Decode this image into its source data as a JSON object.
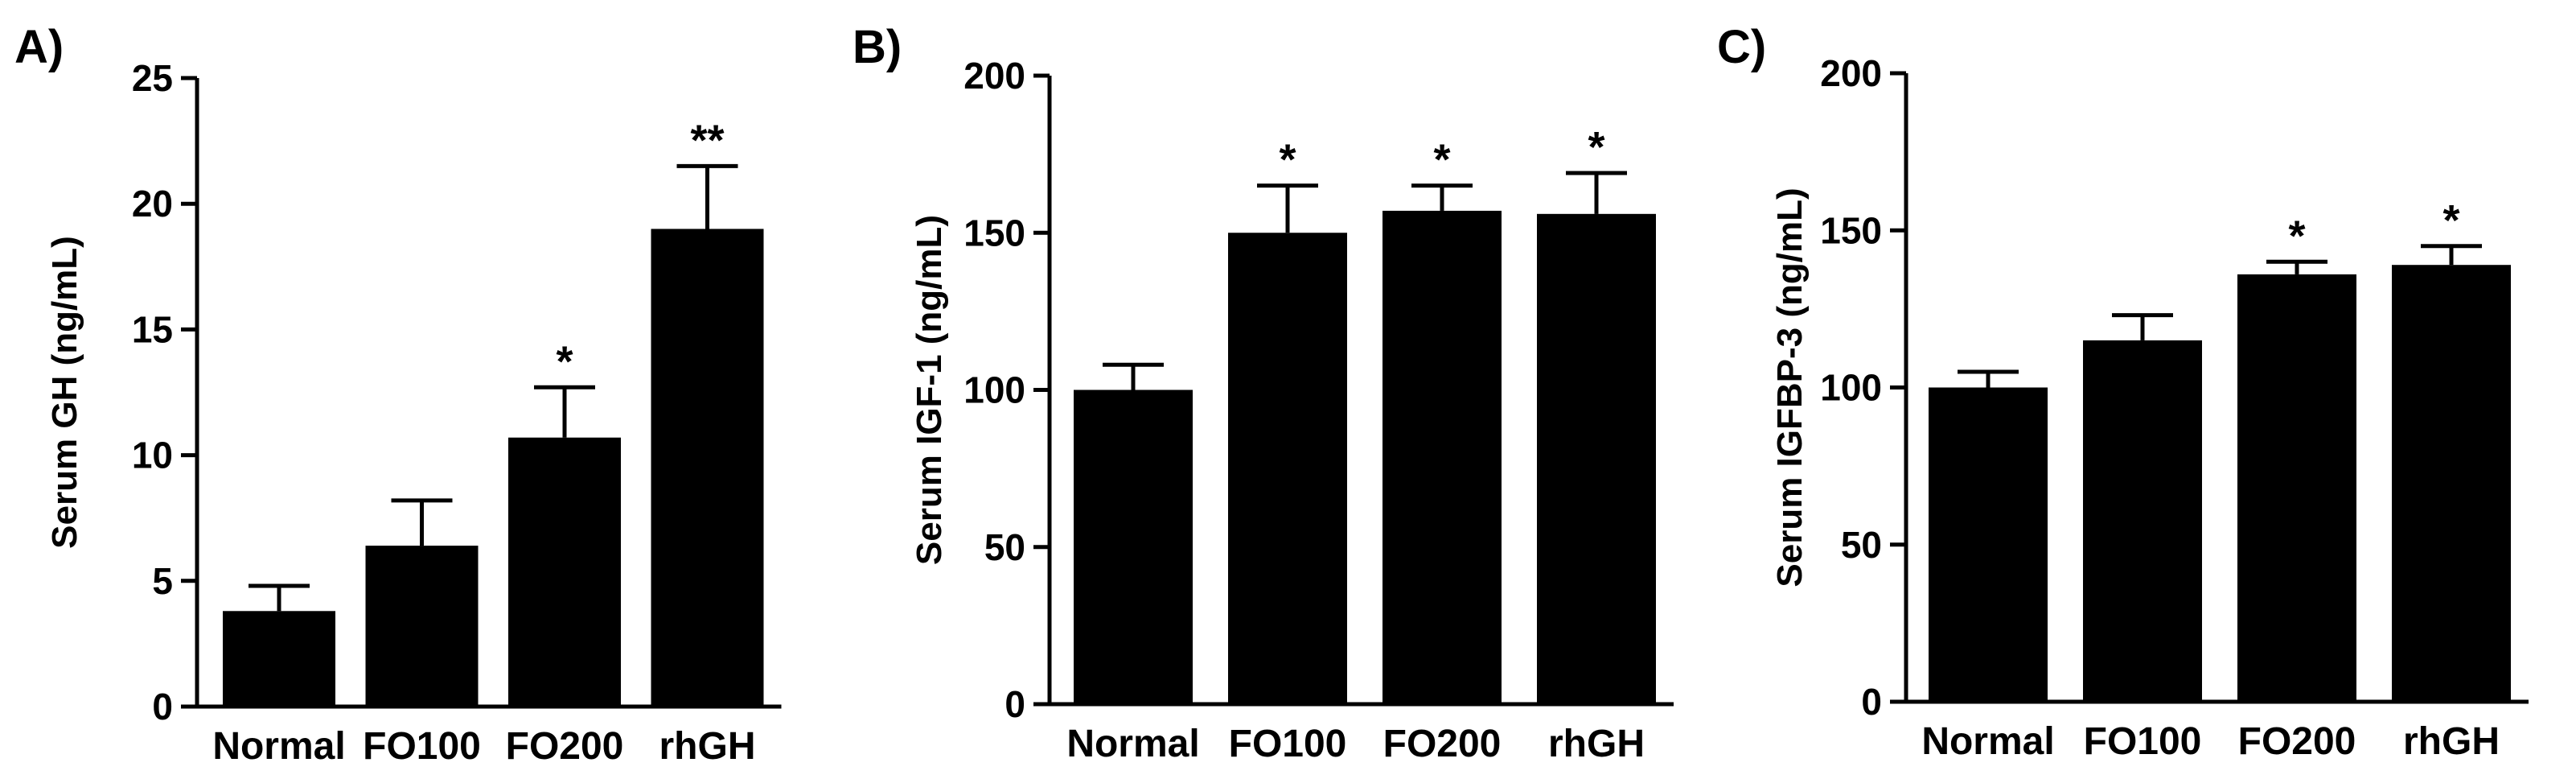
{
  "chart_data": [
    {
      "panel": "A)",
      "type": "bar",
      "ylabel": "Serum GH (ng/mL)",
      "xlabel": "",
      "ylim": [
        0,
        25
      ],
      "yticks": [
        "0",
        "5",
        "10",
        "15",
        "20",
        "25"
      ],
      "categories": [
        "Normal",
        "FO100",
        "FO200",
        "rhGH"
      ],
      "values": [
        3.8,
        6.4,
        10.7,
        19.0
      ],
      "errors": [
        1.0,
        1.8,
        2.0,
        2.5
      ],
      "significance": [
        "",
        "",
        "*",
        "**"
      ],
      "bar_color": "#000000",
      "grid": false
    },
    {
      "panel": "B)",
      "type": "bar",
      "ylabel": "Serum IGF-1 (ng/mL)",
      "xlabel": "",
      "ylim": [
        0,
        200
      ],
      "yticks": [
        "0",
        "50",
        "100",
        "150",
        "200"
      ],
      "categories": [
        "Normal",
        "FO100",
        "FO200",
        "rhGH"
      ],
      "values": [
        100,
        150,
        157,
        156
      ],
      "errors": [
        8,
        15,
        8,
        13
      ],
      "significance": [
        "",
        "*",
        "*",
        "*"
      ],
      "bar_color": "#000000",
      "grid": false
    },
    {
      "panel": "C)",
      "type": "bar",
      "ylabel": "Serum IGFBP-3 (ng/mL)",
      "xlabel": "",
      "ylim": [
        0,
        200
      ],
      "yticks": [
        "0",
        "50",
        "100",
        "150",
        "200"
      ],
      "categories": [
        "Normal",
        "FO100",
        "FO200",
        "rhGH"
      ],
      "values": [
        100,
        115,
        136,
        139
      ],
      "errors": [
        5,
        8,
        4,
        6
      ],
      "significance": [
        "",
        "",
        "*",
        "*"
      ],
      "bar_color": "#000000",
      "grid": false
    }
  ]
}
